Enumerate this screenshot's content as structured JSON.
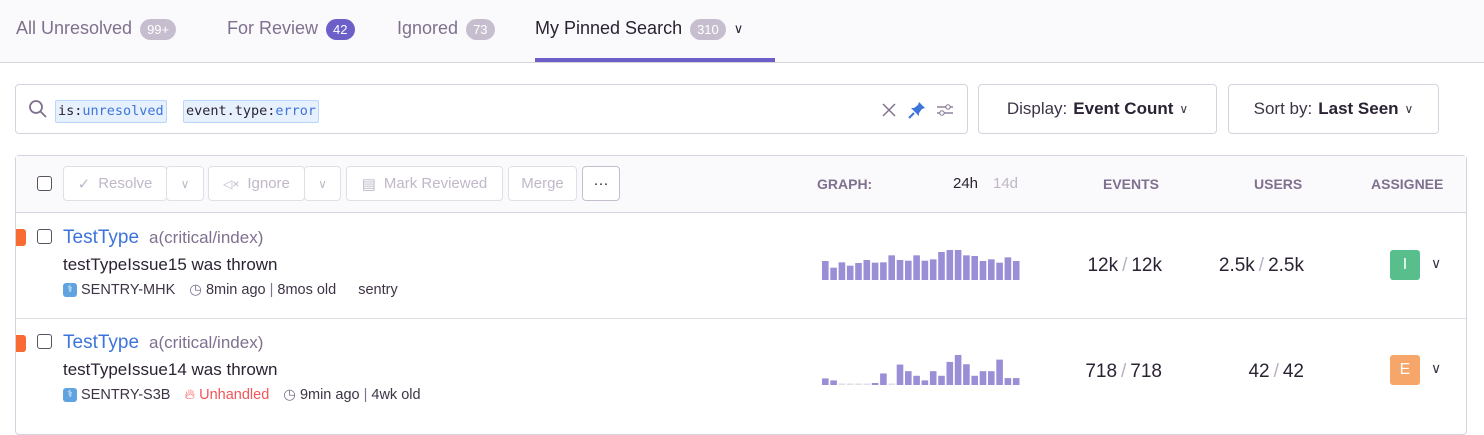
{
  "tabs": [
    {
      "label": "All Unresolved",
      "count": "99+"
    },
    {
      "label": "For Review",
      "count": "42"
    },
    {
      "label": "Ignored",
      "count": "73"
    },
    {
      "label": "My Pinned Search",
      "count": "310",
      "active": true
    }
  ],
  "search": {
    "tokens": [
      {
        "key": "is:",
        "value": "unresolved"
      },
      {
        "key": "event.type:",
        "value": "error"
      }
    ],
    "icons": [
      "search-icon",
      "clear-icon",
      "pin-icon",
      "settings-sliders-icon"
    ]
  },
  "display": {
    "label": "Display:",
    "value": "Event Count"
  },
  "sort": {
    "label": "Sort by:",
    "value": "Last Seen"
  },
  "actions": {
    "resolve": "Resolve",
    "ignore": "Ignore",
    "mark_reviewed": "Mark Reviewed",
    "merge": "Merge",
    "more": "···"
  },
  "columns": {
    "graph": "GRAPH:",
    "period_24h": "24h",
    "period_14d": "14d",
    "events": "EVENTS",
    "users": "USERS",
    "assignee": "ASSIGNEE"
  },
  "issues": [
    {
      "title": "TestType",
      "culprit": "a(critical/index)",
      "message": "testTypeIssue15 was thrown",
      "short_id": "SENTRY-MHK",
      "unhandled": "",
      "last_seen": "8min ago",
      "age": "8mos old",
      "project": "sentry",
      "events": "12k",
      "events_total": "12k",
      "users": "2.5k",
      "users_total": "2.5k",
      "assignee": "I",
      "assignee_color": "#57be8c",
      "level_color": "#f86b33",
      "trend": [
        57,
        37,
        53,
        43,
        51,
        60,
        52,
        53,
        74,
        60,
        58,
        74,
        58,
        62,
        84,
        90,
        90,
        74,
        72,
        57,
        62,
        52,
        68,
        57
      ]
    },
    {
      "title": "TestType",
      "culprit": "a(critical/index)",
      "message": "testTypeIssue14 was thrown",
      "short_id": "SENTRY-S3B",
      "unhandled": "Unhandled",
      "last_seen": "9min ago",
      "age": "4wk old",
      "project": "",
      "events": "718",
      "events_total": "718",
      "users": "42",
      "users_total": "42",
      "assignee": "E",
      "assignee_color": "#f7a66a",
      "level_color": "#f86b33",
      "trend": [
        20,
        14,
        0,
        0,
        0,
        0,
        6,
        35,
        0,
        62,
        42,
        28,
        14,
        42,
        28,
        70,
        91,
        63,
        28,
        42,
        42,
        77,
        21,
        21
      ]
    }
  ],
  "colors": {
    "accent": "#6c5fc7",
    "link": "#3d74db",
    "bar": "#9a8fd6",
    "unhandled": "#f55459"
  }
}
